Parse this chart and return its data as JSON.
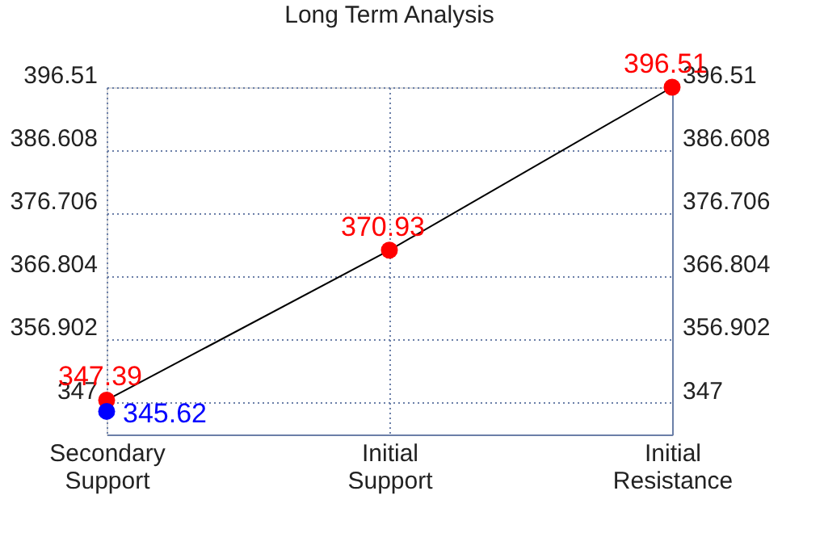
{
  "chart_data": {
    "type": "line",
    "title": "Long Term Analysis",
    "categories": [
      "Secondary Support",
      "Initial Support",
      "Initial Resistance"
    ],
    "series": [
      {
        "color": "#000000",
        "colors": [
          "#ff0000",
          "#ff0000",
          "#ff0000"
        ],
        "values": [
          347.39,
          370.93,
          396.51
        ]
      },
      {
        "type": "scatter",
        "color": "#0000ff",
        "values": [
          345.62,
          null,
          null
        ]
      }
    ],
    "ylim": [
      342,
      396.51
    ],
    "yticks": [
      347,
      356.902,
      366.804,
      376.706,
      386.608,
      396.51
    ],
    "y2lim": [
      342,
      396.51
    ],
    "y2ticks": [
      347,
      356.902,
      366.804,
      376.706,
      386.608,
      396.51
    ],
    "grid": true,
    "marker": "circle",
    "data_labels": true
  }
}
